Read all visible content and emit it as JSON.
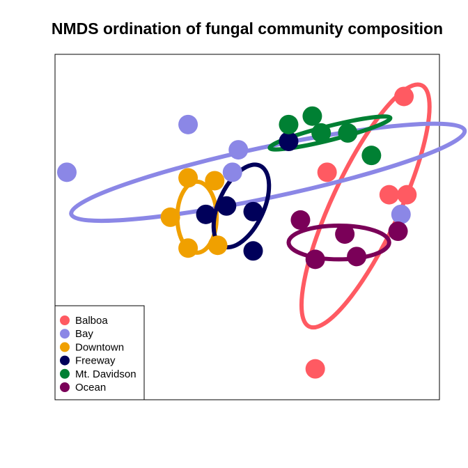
{
  "chart_data": {
    "type": "scatter",
    "title": "NMDS ordination of fungal community composition",
    "xlabel": "",
    "ylabel": "",
    "axes_visible": false,
    "grid": false,
    "legend_position": "bottom-left",
    "series": [
      {
        "name": "Balboa",
        "color": "#FF5A62",
        "points": [
          [
            9.3,
            8.3
          ],
          [
            6.7,
            5.6
          ],
          [
            8.8,
            4.8
          ],
          [
            9.4,
            4.8
          ],
          [
            6.3,
            -1.4
          ]
        ],
        "ellipse": {
          "cx": 8.0,
          "cy": 4.4,
          "rx": 4.5,
          "ry": 1.2,
          "angle": -65
        }
      },
      {
        "name": "Bay",
        "color": "#8B87E6",
        "points": [
          [
            -2.1,
            5.6
          ],
          [
            2.0,
            7.3
          ],
          [
            3.7,
            6.4
          ],
          [
            3.5,
            5.6
          ],
          [
            9.2,
            4.1
          ]
        ],
        "ellipse": {
          "cx": 4.7,
          "cy": 5.6,
          "rx": 6.8,
          "ry": 0.9,
          "angle": -12
        }
      },
      {
        "name": "Downtown",
        "color": "#F0A000",
        "points": [
          [
            2.0,
            5.4
          ],
          [
            2.9,
            5.3
          ],
          [
            1.4,
            4.0
          ],
          [
            2.0,
            2.9
          ],
          [
            3.0,
            3.0
          ]
        ],
        "ellipse": {
          "cx": 2.3,
          "cy": 4.0,
          "rx": 1.2,
          "ry": 0.7,
          "angle": 90
        }
      },
      {
        "name": "Freeway",
        "color": "#00005A",
        "points": [
          [
            5.4,
            6.7
          ],
          [
            2.6,
            4.1
          ],
          [
            3.3,
            4.4
          ],
          [
            4.2,
            4.2
          ],
          [
            4.2,
            2.8
          ]
        ],
        "ellipse": {
          "cx": 3.8,
          "cy": 4.4,
          "rx": 1.5,
          "ry": 0.8,
          "angle": -65
        }
      },
      {
        "name": "Mt. Davidson",
        "color": "#008033",
        "points": [
          [
            6.2,
            7.6
          ],
          [
            5.4,
            7.3
          ],
          [
            6.5,
            7.0
          ],
          [
            7.4,
            7.0
          ],
          [
            8.2,
            6.2
          ]
        ],
        "ellipse": {
          "cx": 6.8,
          "cy": 7.0,
          "rx": 2.1,
          "ry": 0.25,
          "angle": -14
        }
      },
      {
        "name": "Ocean",
        "color": "#7A0058",
        "points": [
          [
            5.8,
            3.9
          ],
          [
            6.3,
            2.5
          ],
          [
            7.3,
            3.4
          ],
          [
            7.7,
            2.6
          ],
          [
            9.1,
            3.5
          ]
        ],
        "ellipse": {
          "cx": 7.1,
          "cy": 3.1,
          "rx": 1.7,
          "ry": 0.6,
          "angle": 0
        }
      }
    ],
    "xlim": [
      -2.5,
      10.5
    ],
    "ylim": [
      -2.5,
      9.8
    ]
  }
}
